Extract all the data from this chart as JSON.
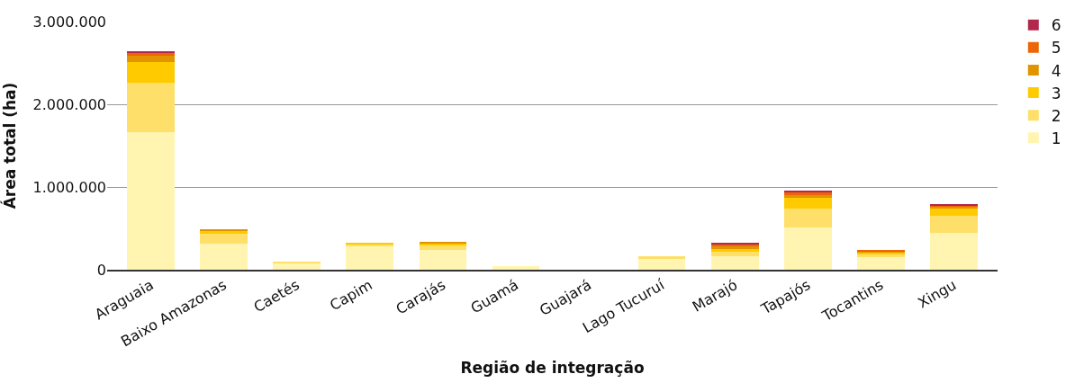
{
  "chart_data": {
    "type": "bar",
    "stacked": true,
    "xlabel": "Região de integração",
    "ylabel": "Área total (ha)",
    "categories": [
      "Araguaia",
      "Baixo Amazonas",
      "Caetés",
      "Capim",
      "Carajás",
      "Guamá",
      "Guajará",
      "Lago Tucuruí",
      "Marajó",
      "Tapajós",
      "Tocantins",
      "Xingu"
    ],
    "series": [
      {
        "name": "1",
        "color": "#fff5b1",
        "values": [
          1660000,
          310000,
          80000,
          280000,
          240000,
          40000,
          0,
          140000,
          160000,
          510000,
          150000,
          450000
        ]
      },
      {
        "name": "2",
        "color": "#fddf6a",
        "values": [
          600000,
          130000,
          20000,
          30000,
          60000,
          0,
          0,
          20000,
          60000,
          230000,
          30000,
          200000
        ]
      },
      {
        "name": "3",
        "color": "#ffcb00",
        "values": [
          250000,
          30000,
          0,
          10000,
          20000,
          0,
          0,
          0,
          30000,
          130000,
          30000,
          90000
        ]
      },
      {
        "name": "4",
        "color": "#e09400",
        "values": [
          80000,
          20000,
          0,
          0,
          10000,
          0,
          0,
          0,
          30000,
          40000,
          10000,
          30000
        ]
      },
      {
        "name": "5",
        "color": "#ec6607",
        "values": [
          30000,
          0,
          0,
          0,
          0,
          0,
          0,
          0,
          30000,
          20000,
          10000,
          10000
        ]
      },
      {
        "name": "6",
        "color": "#b2284c",
        "values": [
          20000,
          0,
          0,
          0,
          0,
          0,
          0,
          0,
          20000,
          30000,
          0,
          10000
        ]
      }
    ],
    "ylim": [
      0,
      3000000
    ],
    "yticks": [
      {
        "value": 0,
        "label": "0"
      },
      {
        "value": 1000000,
        "label": "1.000.000"
      },
      {
        "value": 2000000,
        "label": "2.000.000"
      },
      {
        "value": 3000000,
        "label": "3.000.000"
      }
    ],
    "grid": "y",
    "legend": "right"
  }
}
